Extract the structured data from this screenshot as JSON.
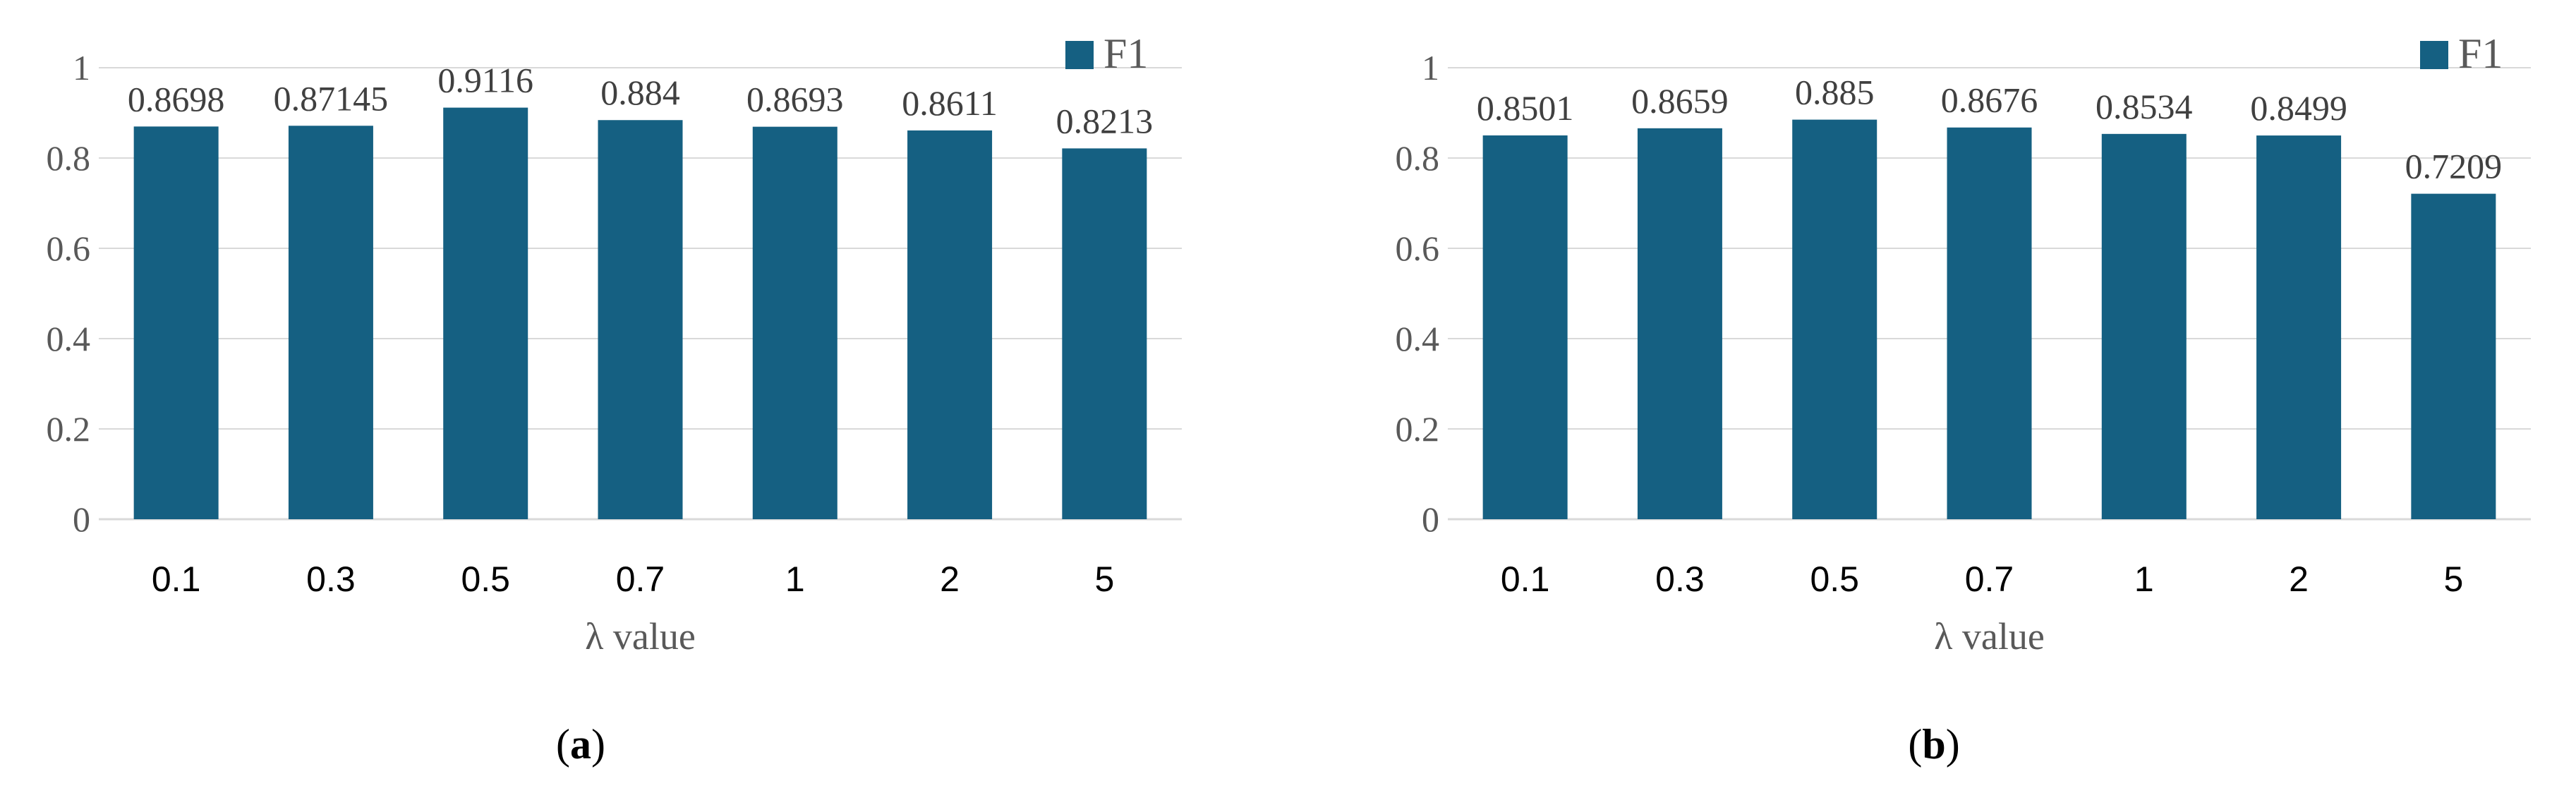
{
  "colors": {
    "bar": "#156082",
    "grid": "#d9d9d9",
    "axis": "#d9d9d9"
  },
  "chart_data": [
    {
      "type": "bar",
      "panel": "a",
      "caption": "a",
      "categories": [
        "0.1",
        "0.3",
        "0.5",
        "0.7",
        "1",
        "2",
        "5"
      ],
      "series": [
        {
          "name": "F1",
          "values": [
            0.8698,
            0.87145,
            0.9116,
            0.884,
            0.8693,
            0.8611,
            0.8213
          ]
        }
      ],
      "data_labels": [
        "0.8698",
        "0.87145",
        "0.9116",
        "0.884",
        "0.8693",
        "0.8611",
        "0.8213"
      ],
      "xlabel": "λ value",
      "ylabel": "",
      "ylim": [
        0,
        1
      ],
      "yticks": [
        "0",
        "0.2",
        "0.4",
        "0.6",
        "0.8",
        "1"
      ],
      "grid": true,
      "legend": "top-right"
    },
    {
      "type": "bar",
      "panel": "b",
      "caption": "b",
      "categories": [
        "0.1",
        "0.3",
        "0.5",
        "0.7",
        "1",
        "2",
        "5"
      ],
      "series": [
        {
          "name": "F1",
          "values": [
            0.8501,
            0.8659,
            0.885,
            0.8676,
            0.8534,
            0.8499,
            0.7209
          ]
        }
      ],
      "data_labels": [
        "0.8501",
        "0.8659",
        "0.885",
        "0.8676",
        "0.8534",
        "0.8499",
        "0.7209"
      ],
      "xlabel": "λ value",
      "ylabel": "",
      "ylim": [
        0,
        1
      ],
      "yticks": [
        "0",
        "0.2",
        "0.4",
        "0.6",
        "0.8",
        "1"
      ],
      "grid": true,
      "legend": "top-right"
    }
  ]
}
